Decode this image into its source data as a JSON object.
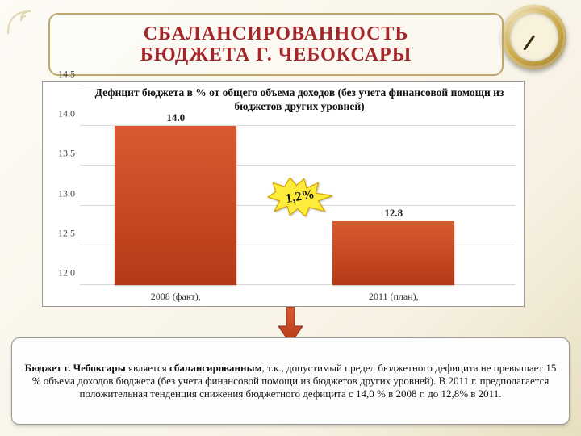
{
  "title": {
    "line1": "СБАЛАНСИРОВАННОСТЬ",
    "line2": "БЮДЖЕТА Г. ЧЕБОКСАРЫ",
    "fontsize": 24,
    "color": "#a3262a"
  },
  "chart": {
    "type": "bar",
    "title": "Дефицит бюджета в % от общего объема доходов (без учета финансовой помощи из бюджетов других уровней)",
    "title_fontsize": 13,
    "ylim": [
      12.0,
      14.5
    ],
    "ytick_step": 0.5,
    "yticks": [
      "12.0",
      "12.5",
      "13.0",
      "13.5",
      "14.0",
      "14.5"
    ],
    "categories": [
      "2008 (факт),",
      "2011 (план),"
    ],
    "values": [
      14.0,
      12.8
    ],
    "value_labels": [
      "14.0",
      "12.8"
    ],
    "bar_color": "#c74a22",
    "background_color": "#ffffff",
    "grid_color": "#d8d8d8",
    "axis_color": "#888888",
    "bar_width_pct": 28,
    "bar_positions_pct": [
      22,
      72
    ],
    "label_fontsize": 12
  },
  "callout": {
    "label": "1,2%",
    "fill": "#ffeb3b",
    "stroke": "#d4a100",
    "fontsize": 16,
    "rotation_deg": -10
  },
  "arrow": {
    "fill1": "#d85a30",
    "fill2": "#b43a16"
  },
  "bottom": {
    "lead_bold": "Бюджет г. Чебоксары",
    "mid1": " является ",
    "mid_bold": "сбалансированным",
    "rest": ", т.к., допустимый предел бюджетного дефицита не превышает 15 % объема доходов бюджета (без учета финансовой помощи из бюджетов других уровней). В 2011 г. предполагается положительная тенденция снижения бюджетного дефицита с 14,0 % в 2008 г. до 12,8% в 2011.",
    "fontsize": 13
  }
}
